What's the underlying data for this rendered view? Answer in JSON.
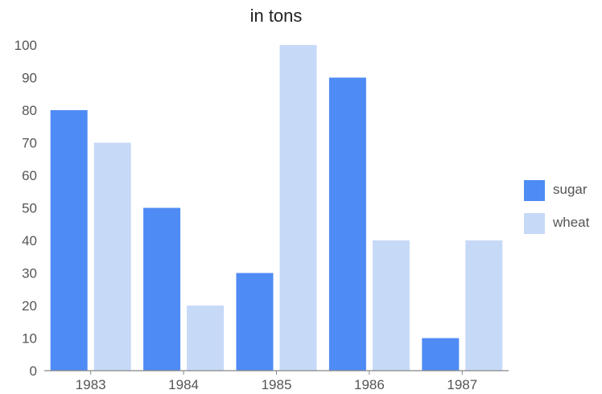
{
  "chart_data": {
    "type": "bar",
    "title": "in tons",
    "xlabel": "",
    "ylabel": "",
    "categories": [
      "1983",
      "1984",
      "1985",
      "1986",
      "1987"
    ],
    "series": [
      {
        "name": "sugar",
        "values": [
          80,
          50,
          30,
          90,
          10
        ],
        "color": "#4f8bf5"
      },
      {
        "name": "wheat",
        "values": [
          70,
          20,
          100,
          40,
          40
        ],
        "color": "#c6d9f7"
      }
    ],
    "ylim": [
      0,
      100
    ],
    "yticks": [
      "0",
      "10",
      "20",
      "30",
      "40",
      "50",
      "60",
      "70",
      "80",
      "90",
      "100"
    ],
    "grid": false,
    "legend_position": "right"
  }
}
